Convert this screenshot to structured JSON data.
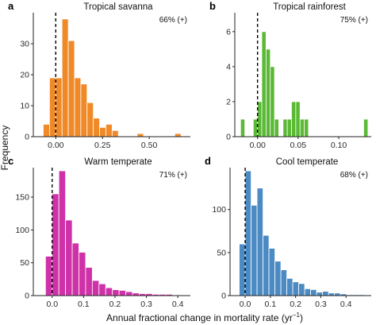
{
  "ylabel": "Frequency",
  "xlabel": "Annual fractional change in mortality rate (yr",
  "xlabel_sup": "−1",
  "xlabel_end": ")",
  "chart_data": [
    {
      "type": "bar",
      "panel": "a",
      "title": "Tropical savanna",
      "annotation": "66% (+)",
      "color": "#f08a28",
      "xlim": [
        -0.12,
        0.72
      ],
      "ylim": [
        0,
        39
      ],
      "xticks": [
        0,
        0.25,
        0.5
      ],
      "xtick_labels": [
        "0.00",
        "0.25",
        "0.50"
      ],
      "yticks": [
        0,
        10,
        20,
        30
      ],
      "bin_width": 0.0335,
      "bins_left": [
        -0.067,
        -0.0335,
        0.0,
        0.0335,
        0.067,
        0.1005,
        0.134,
        0.1675,
        0.201,
        0.2345,
        0.268,
        0.3015,
        0.335,
        0.3685,
        0.402,
        0.4355,
        0.469,
        0.5025,
        0.536,
        0.5695,
        0.603,
        0.6365,
        0.67
      ],
      "values": [
        4,
        19,
        19,
        38,
        31,
        19,
        17,
        11,
        6,
        3,
        4,
        2,
        0,
        0,
        0,
        1,
        0,
        0,
        0,
        0,
        0,
        1,
        0
      ],
      "vline_x": 0.0
    },
    {
      "type": "bar",
      "panel": "b",
      "title": "Tropical rainforest",
      "annotation": "75% (+)",
      "color": "#5ab935",
      "xlim": [
        -0.028,
        0.14
      ],
      "ylim": [
        0,
        6.9
      ],
      "xticks": [
        0,
        0.05,
        0.1
      ],
      "xtick_labels": [
        "0.00",
        "0.05",
        "0.10"
      ],
      "yticks": [
        0,
        2,
        4,
        6
      ],
      "bin_width": 0.00523,
      "bins_left": [
        -0.0209,
        -0.0157,
        -0.0105,
        -0.0052,
        0.0,
        0.0052,
        0.0105,
        0.0157,
        0.0209,
        0.0262,
        0.0314,
        0.0366,
        0.0418,
        0.0471,
        0.0523,
        0.0575,
        0.0628,
        0.068,
        0.0732,
        0.0785,
        0.0837,
        0.0889,
        0.0941,
        0.0994,
        0.1046,
        0.1098,
        0.1151,
        0.1203,
        0.1255,
        0.1307
      ],
      "values": [
        1,
        0,
        0,
        1,
        2,
        6,
        5,
        4,
        1,
        0,
        1,
        1,
        2,
        2,
        1,
        1,
        0,
        0,
        0,
        0,
        0,
        0,
        0,
        0,
        0,
        0,
        0,
        0,
        0,
        1
      ],
      "vline_x": 0.0
    },
    {
      "type": "bar",
      "panel": "c",
      "title": "Warm temperate",
      "annotation": "71% (+)",
      "color": "#cf32a8",
      "xlim": [
        -0.06,
        0.44
      ],
      "ylim": [
        0,
        190
      ],
      "xticks": [
        0,
        0.1,
        0.2,
        0.3,
        0.4
      ],
      "xtick_labels": [
        "0.0",
        "0.1",
        "0.2",
        "0.3",
        "0.4"
      ],
      "yticks": [
        0,
        50,
        100,
        150
      ],
      "bin_width": 0.0213,
      "bins_left": [
        -0.0213,
        0.0,
        0.0213,
        0.0426,
        0.0639,
        0.0852,
        0.1065,
        0.1278,
        0.1491,
        0.1704,
        0.1917,
        0.213,
        0.2343,
        0.2556,
        0.2769,
        0.2982,
        0.3195,
        0.3408,
        0.3621,
        0.3834
      ],
      "values": [
        60,
        155,
        190,
        115,
        80,
        66,
        43,
        23,
        18,
        12,
        9,
        8,
        6,
        4,
        3,
        3,
        2,
        2,
        2,
        1
      ],
      "vline_x": 0.0
    },
    {
      "type": "bar",
      "panel": "d",
      "title": "Cool temperate",
      "annotation": "68% (+)",
      "color": "#4b8ac2",
      "xlim": [
        -0.06,
        0.5
      ],
      "ylim": [
        0,
        145
      ],
      "xticks": [
        0,
        0.1,
        0.2,
        0.3,
        0.4
      ],
      "xtick_labels": [
        "0.0",
        "0.1",
        "0.2",
        "0.3",
        "0.4"
      ],
      "yticks": [
        0,
        50,
        100
      ],
      "bin_width": 0.0236,
      "bins_left": [
        -0.0236,
        0.0,
        0.0236,
        0.0472,
        0.0708,
        0.0944,
        0.118,
        0.1416,
        0.1652,
        0.1888,
        0.2124,
        0.236,
        0.2596,
        0.2832,
        0.3068,
        0.3304,
        0.354,
        0.3776,
        0.4012,
        0.4248,
        0.4484
      ],
      "values": [
        60,
        145,
        105,
        125,
        70,
        55,
        40,
        30,
        20,
        16,
        14,
        8,
        7,
        4,
        5,
        3,
        3,
        2,
        1,
        1,
        1
      ],
      "vline_x": 0.0
    }
  ]
}
